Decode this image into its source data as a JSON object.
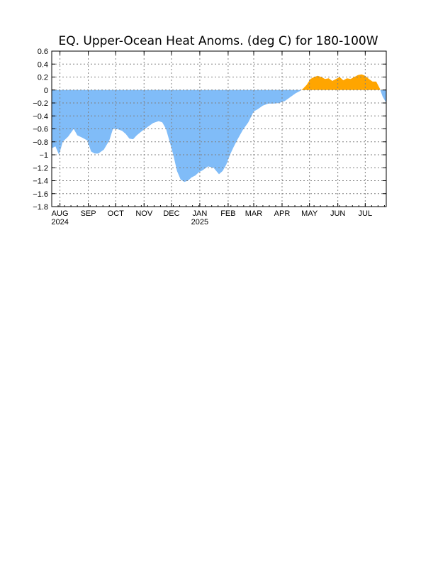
{
  "chart_data": {
    "type": "area",
    "title": "EQ. Upper-Ocean Heat Anoms. (deg C) for 180-100W",
    "xlabel": "",
    "ylabel": "",
    "ylim": [
      -1.8,
      0.6
    ],
    "yticks": [
      0.6,
      0.4,
      0.2,
      0,
      -0.2,
      -0.4,
      -0.6,
      -0.8,
      -1,
      -1.2,
      -1.4,
      -1.6,
      -1.8
    ],
    "yticklabels": [
      "0.6",
      "0.4",
      "0.2",
      "0",
      "−0.2",
      "−0.4",
      "−0.6",
      "−0.8",
      "−1",
      "−1.2",
      "−1.4",
      "−1.6",
      "−1.8"
    ],
    "xlim": [
      "2024-07-23",
      "2025-07-24"
    ],
    "xticks": [
      {
        "date": "2024-08-01",
        "label": "AUG",
        "sublabel": "2024"
      },
      {
        "date": "2024-09-01",
        "label": "SEP",
        "sublabel": ""
      },
      {
        "date": "2024-10-01",
        "label": "OCT",
        "sublabel": ""
      },
      {
        "date": "2024-11-01",
        "label": "NOV",
        "sublabel": ""
      },
      {
        "date": "2024-12-01",
        "label": "DEC",
        "sublabel": ""
      },
      {
        "date": "2025-01-01",
        "label": "JAN",
        "sublabel": "2025"
      },
      {
        "date": "2025-02-01",
        "label": "FEB",
        "sublabel": ""
      },
      {
        "date": "2025-03-01",
        "label": "MAR",
        "sublabel": ""
      },
      {
        "date": "2025-04-01",
        "label": "APR",
        "sublabel": ""
      },
      {
        "date": "2025-05-01",
        "label": "MAY",
        "sublabel": ""
      },
      {
        "date": "2025-06-01",
        "label": "JUN",
        "sublabel": ""
      },
      {
        "date": "2025-07-01",
        "label": "JUL",
        "sublabel": ""
      }
    ],
    "grid": true,
    "colors": {
      "positive": "#ffa500",
      "negative": "#80bcf8"
    },
    "series": [
      {
        "x": [
          "2024-07-23",
          "2024-07-27",
          "2024-07-31",
          "2024-08-04",
          "2024-08-10",
          "2024-08-16",
          "2024-08-20",
          "2024-08-26",
          "2024-08-31",
          "2024-09-04",
          "2024-09-08",
          "2024-09-12",
          "2024-09-18",
          "2024-09-24",
          "2024-09-28",
          "2024-10-02",
          "2024-10-08",
          "2024-10-12",
          "2024-10-16",
          "2024-10-20",
          "2024-10-24",
          "2024-10-30",
          "2024-11-05",
          "2024-11-11",
          "2024-11-17",
          "2024-11-21",
          "2024-11-25",
          "2024-11-29",
          "2024-12-03",
          "2024-12-07",
          "2024-12-11",
          "2024-12-15",
          "2024-12-19",
          "2024-12-23",
          "2024-12-27",
          "2024-12-31",
          "2025-01-04",
          "2025-01-10",
          "2025-01-16",
          "2025-01-22",
          "2025-01-26",
          "2025-01-30",
          "2025-02-03",
          "2025-02-07",
          "2025-02-11",
          "2025-02-17",
          "2025-02-23",
          "2025-03-01",
          "2025-03-05",
          "2025-03-11",
          "2025-03-17",
          "2025-03-23",
          "2025-03-29",
          "2025-04-04",
          "2025-04-10",
          "2025-04-16",
          "2025-04-20",
          "2025-04-24",
          "2025-04-28",
          "2025-05-02",
          "2025-05-06",
          "2025-05-10",
          "2025-05-14",
          "2025-05-18",
          "2025-05-22",
          "2025-05-26",
          "2025-05-30",
          "2025-06-03",
          "2025-06-07",
          "2025-06-11",
          "2025-06-15",
          "2025-06-19",
          "2025-06-23",
          "2025-06-27",
          "2025-07-01",
          "2025-07-05",
          "2025-07-09",
          "2025-07-13",
          "2025-07-17",
          "2025-07-20",
          "2025-07-24"
        ],
        "values": [
          -0.9,
          -0.87,
          -1.0,
          -0.8,
          -0.72,
          -0.6,
          -0.7,
          -0.74,
          -0.78,
          -0.95,
          -0.98,
          -0.98,
          -0.92,
          -0.78,
          -0.6,
          -0.6,
          -0.63,
          -0.68,
          -0.75,
          -0.76,
          -0.7,
          -0.63,
          -0.57,
          -0.51,
          -0.48,
          -0.5,
          -0.6,
          -0.8,
          -1.0,
          -1.25,
          -1.38,
          -1.42,
          -1.4,
          -1.35,
          -1.32,
          -1.27,
          -1.24,
          -1.18,
          -1.2,
          -1.3,
          -1.25,
          -1.15,
          -1.0,
          -0.88,
          -0.77,
          -0.62,
          -0.5,
          -0.33,
          -0.3,
          -0.24,
          -0.21,
          -0.21,
          -0.2,
          -0.17,
          -0.11,
          -0.05,
          -0.02,
          0.02,
          0.08,
          0.17,
          0.2,
          0.22,
          0.2,
          0.17,
          0.18,
          0.14,
          0.17,
          0.2,
          0.15,
          0.18,
          0.17,
          0.2,
          0.23,
          0.24,
          0.22,
          0.17,
          0.13,
          0.13,
          0.02,
          -0.1,
          -0.2
        ]
      }
    ]
  }
}
